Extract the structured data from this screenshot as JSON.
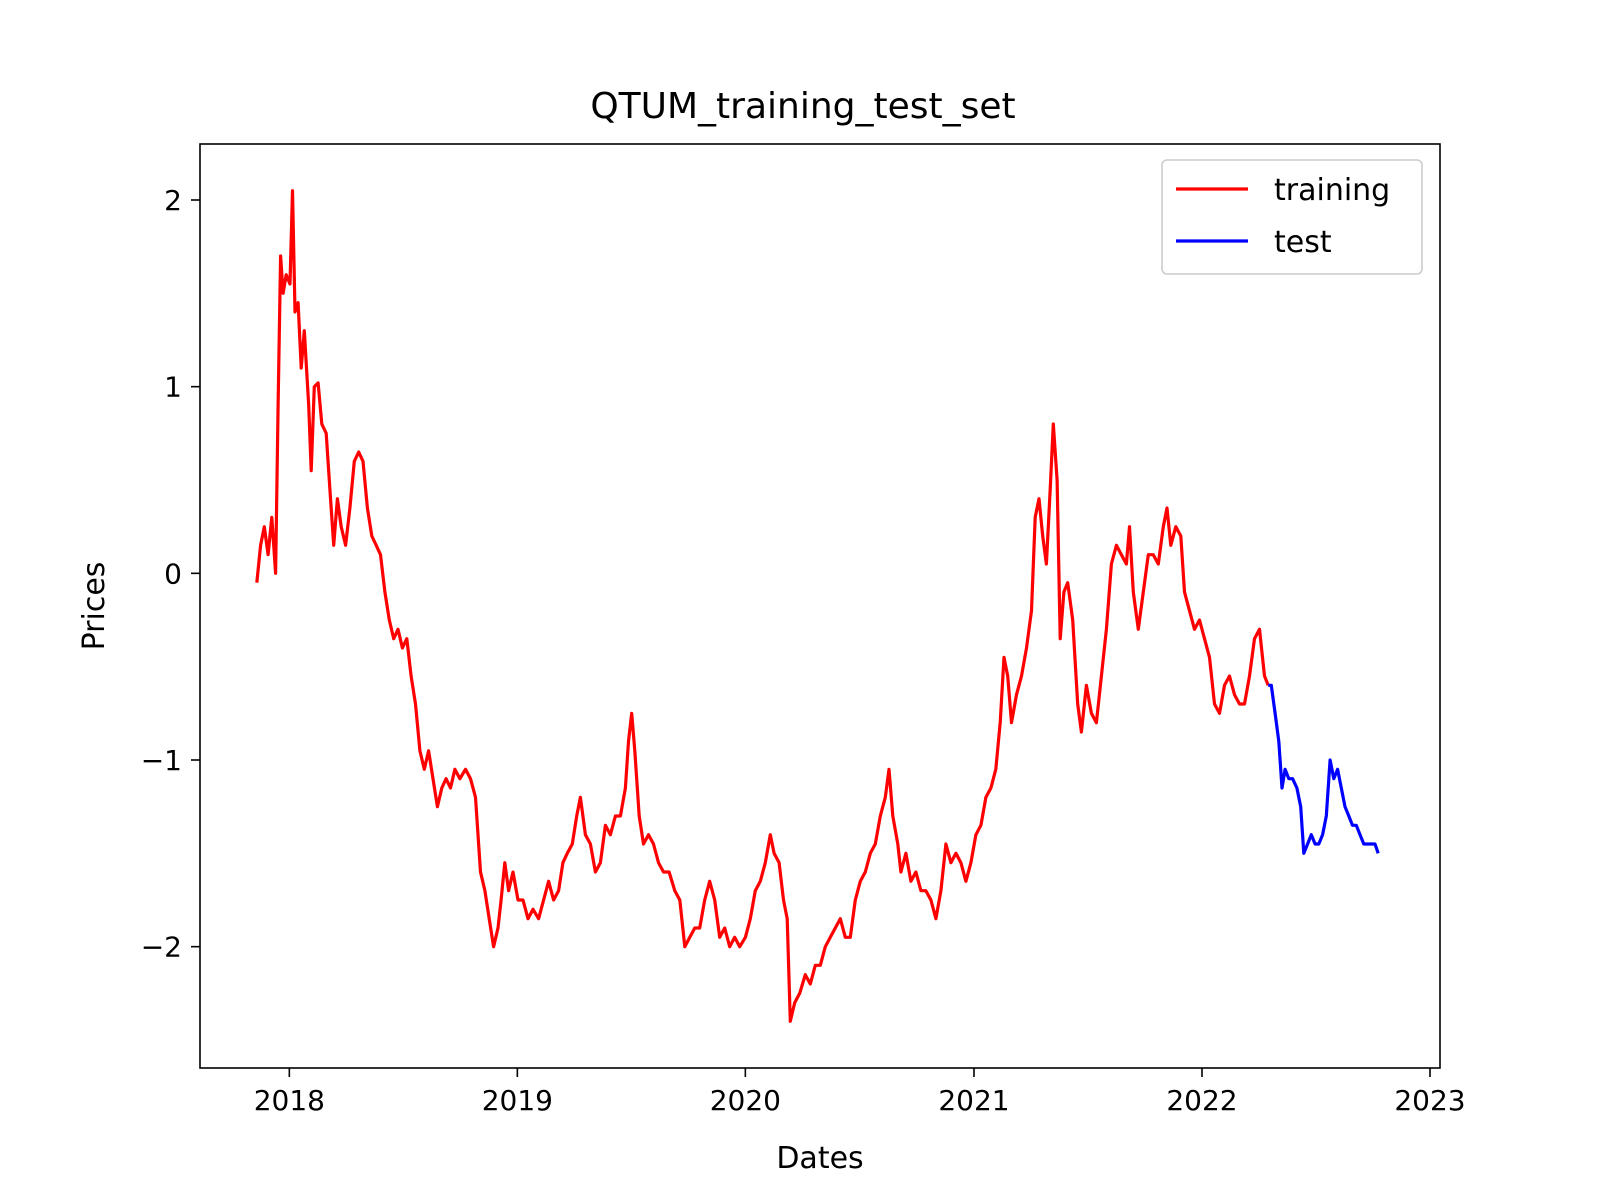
{
  "chart_data": {
    "type": "line",
    "title": "QTUM_training_test_set",
    "xlabel": "Dates",
    "ylabel": "Prices",
    "xlim": [
      "2017-08-11",
      "2023-01-17"
    ],
    "ylim": [
      -2.65,
      2.3
    ],
    "x_ticks": [
      "2018",
      "2019",
      "2020",
      "2021",
      "2022",
      "2023"
    ],
    "y_ticks": [
      {
        "value": 2,
        "label": "2"
      },
      {
        "value": 1,
        "label": "1"
      },
      {
        "value": 0,
        "label": "0"
      },
      {
        "value": -1,
        "label": "−1"
      },
      {
        "value": -2,
        "label": "−2"
      }
    ],
    "grid": false,
    "legend_position": "top-right",
    "series": [
      {
        "name": "training",
        "color": "#ff0000",
        "points": [
          [
            "2017-11-10",
            -0.05
          ],
          [
            "2017-11-16",
            0.15
          ],
          [
            "2017-11-22",
            0.25
          ],
          [
            "2017-11-28",
            0.1
          ],
          [
            "2017-12-04",
            0.3
          ],
          [
            "2017-12-10",
            0.0
          ],
          [
            "2017-12-14",
            0.9
          ],
          [
            "2017-12-18",
            1.7
          ],
          [
            "2017-12-22",
            1.5
          ],
          [
            "2017-12-27",
            1.6
          ],
          [
            "2018-01-02",
            1.55
          ],
          [
            "2018-01-06",
            2.05
          ],
          [
            "2018-01-10",
            1.4
          ],
          [
            "2018-01-15",
            1.45
          ],
          [
            "2018-01-20",
            1.1
          ],
          [
            "2018-01-25",
            1.3
          ],
          [
            "2018-02-01",
            0.9
          ],
          [
            "2018-02-05",
            0.55
          ],
          [
            "2018-02-10",
            1.0
          ],
          [
            "2018-02-16",
            1.02
          ],
          [
            "2018-02-22",
            0.8
          ],
          [
            "2018-03-01",
            0.75
          ],
          [
            "2018-03-07",
            0.45
          ],
          [
            "2018-03-13",
            0.15
          ],
          [
            "2018-03-19",
            0.4
          ],
          [
            "2018-03-25",
            0.25
          ],
          [
            "2018-04-01",
            0.15
          ],
          [
            "2018-04-08",
            0.35
          ],
          [
            "2018-04-15",
            0.6
          ],
          [
            "2018-04-22",
            0.65
          ],
          [
            "2018-04-29",
            0.6
          ],
          [
            "2018-05-06",
            0.35
          ],
          [
            "2018-05-13",
            0.2
          ],
          [
            "2018-05-20",
            0.15
          ],
          [
            "2018-05-27",
            0.1
          ],
          [
            "2018-06-03",
            -0.1
          ],
          [
            "2018-06-10",
            -0.25
          ],
          [
            "2018-06-17",
            -0.35
          ],
          [
            "2018-06-24",
            -0.3
          ],
          [
            "2018-07-01",
            -0.4
          ],
          [
            "2018-07-08",
            -0.35
          ],
          [
            "2018-07-15",
            -0.55
          ],
          [
            "2018-07-22",
            -0.7
          ],
          [
            "2018-07-29",
            -0.95
          ],
          [
            "2018-08-05",
            -1.05
          ],
          [
            "2018-08-12",
            -0.95
          ],
          [
            "2018-08-19",
            -1.1
          ],
          [
            "2018-08-26",
            -1.25
          ],
          [
            "2018-09-02",
            -1.15
          ],
          [
            "2018-09-09",
            -1.1
          ],
          [
            "2018-09-16",
            -1.15
          ],
          [
            "2018-09-23",
            -1.05
          ],
          [
            "2018-10-01",
            -1.1
          ],
          [
            "2018-10-10",
            -1.05
          ],
          [
            "2018-10-18",
            -1.1
          ],
          [
            "2018-10-26",
            -1.2
          ],
          [
            "2018-11-03",
            -1.6
          ],
          [
            "2018-11-10",
            -1.7
          ],
          [
            "2018-11-17",
            -1.85
          ],
          [
            "2018-11-24",
            -2.0
          ],
          [
            "2018-12-01",
            -1.9
          ],
          [
            "2018-12-06",
            -1.75
          ],
          [
            "2018-12-12",
            -1.55
          ],
          [
            "2018-12-18",
            -1.7
          ],
          [
            "2018-12-25",
            -1.6
          ],
          [
            "2019-01-02",
            -1.75
          ],
          [
            "2019-01-10",
            -1.75
          ],
          [
            "2019-01-18",
            -1.85
          ],
          [
            "2019-01-26",
            -1.8
          ],
          [
            "2019-02-04",
            -1.85
          ],
          [
            "2019-02-12",
            -1.75
          ],
          [
            "2019-02-20",
            -1.65
          ],
          [
            "2019-02-28",
            -1.75
          ],
          [
            "2019-03-08",
            -1.7
          ],
          [
            "2019-03-15",
            -1.55
          ],
          [
            "2019-03-22",
            -1.5
          ],
          [
            "2019-03-30",
            -1.45
          ],
          [
            "2019-04-06",
            -1.3
          ],
          [
            "2019-04-12",
            -1.2
          ],
          [
            "2019-04-20",
            -1.4
          ],
          [
            "2019-04-28",
            -1.45
          ],
          [
            "2019-05-06",
            -1.6
          ],
          [
            "2019-05-14",
            -1.55
          ],
          [
            "2019-05-22",
            -1.35
          ],
          [
            "2019-05-30",
            -1.4
          ],
          [
            "2019-06-07",
            -1.3
          ],
          [
            "2019-06-15",
            -1.3
          ],
          [
            "2019-06-23",
            -1.15
          ],
          [
            "2019-06-28",
            -0.9
          ],
          [
            "2019-07-03",
            -0.75
          ],
          [
            "2019-07-08",
            -0.95
          ],
          [
            "2019-07-15",
            -1.3
          ],
          [
            "2019-07-22",
            -1.45
          ],
          [
            "2019-07-30",
            -1.4
          ],
          [
            "2019-08-07",
            -1.45
          ],
          [
            "2019-08-15",
            -1.55
          ],
          [
            "2019-08-23",
            -1.6
          ],
          [
            "2019-09-01",
            -1.6
          ],
          [
            "2019-09-10",
            -1.7
          ],
          [
            "2019-09-18",
            -1.75
          ],
          [
            "2019-09-26",
            -2.0
          ],
          [
            "2019-10-04",
            -1.95
          ],
          [
            "2019-10-12",
            -1.9
          ],
          [
            "2019-10-20",
            -1.9
          ],
          [
            "2019-10-28",
            -1.75
          ],
          [
            "2019-11-05",
            -1.65
          ],
          [
            "2019-11-13",
            -1.75
          ],
          [
            "2019-11-21",
            -1.95
          ],
          [
            "2019-11-29",
            -1.9
          ],
          [
            "2019-12-07",
            -2.0
          ],
          [
            "2019-12-15",
            -1.95
          ],
          [
            "2019-12-23",
            -2.0
          ],
          [
            "2020-01-01",
            -1.95
          ],
          [
            "2020-01-09",
            -1.85
          ],
          [
            "2020-01-17",
            -1.7
          ],
          [
            "2020-01-25",
            -1.65
          ],
          [
            "2020-02-02",
            -1.55
          ],
          [
            "2020-02-10",
            -1.4
          ],
          [
            "2020-02-16",
            -1.5
          ],
          [
            "2020-02-24",
            -1.55
          ],
          [
            "2020-03-02",
            -1.75
          ],
          [
            "2020-03-08",
            -1.85
          ],
          [
            "2020-03-13",
            -2.4
          ],
          [
            "2020-03-20",
            -2.3
          ],
          [
            "2020-03-28",
            -2.25
          ],
          [
            "2020-04-06",
            -2.15
          ],
          [
            "2020-04-14",
            -2.2
          ],
          [
            "2020-04-22",
            -2.1
          ],
          [
            "2020-04-30",
            -2.1
          ],
          [
            "2020-05-08",
            -2.0
          ],
          [
            "2020-05-16",
            -1.95
          ],
          [
            "2020-05-24",
            -1.9
          ],
          [
            "2020-06-01",
            -1.85
          ],
          [
            "2020-06-09",
            -1.95
          ],
          [
            "2020-06-17",
            -1.95
          ],
          [
            "2020-06-25",
            -1.75
          ],
          [
            "2020-07-03",
            -1.65
          ],
          [
            "2020-07-11",
            -1.6
          ],
          [
            "2020-07-19",
            -1.5
          ],
          [
            "2020-07-27",
            -1.45
          ],
          [
            "2020-08-04",
            -1.3
          ],
          [
            "2020-08-12",
            -1.2
          ],
          [
            "2020-08-18",
            -1.05
          ],
          [
            "2020-08-24",
            -1.3
          ],
          [
            "2020-09-01",
            -1.45
          ],
          [
            "2020-09-06",
            -1.6
          ],
          [
            "2020-09-14",
            -1.5
          ],
          [
            "2020-09-22",
            -1.65
          ],
          [
            "2020-09-30",
            -1.6
          ],
          [
            "2020-10-08",
            -1.7
          ],
          [
            "2020-10-16",
            -1.7
          ],
          [
            "2020-10-24",
            -1.75
          ],
          [
            "2020-11-01",
            -1.85
          ],
          [
            "2020-11-09",
            -1.7
          ],
          [
            "2020-11-17",
            -1.45
          ],
          [
            "2020-11-25",
            -1.55
          ],
          [
            "2020-12-03",
            -1.5
          ],
          [
            "2020-12-11",
            -1.55
          ],
          [
            "2020-12-19",
            -1.65
          ],
          [
            "2020-12-27",
            -1.55
          ],
          [
            "2021-01-04",
            -1.4
          ],
          [
            "2021-01-12",
            -1.35
          ],
          [
            "2021-01-20",
            -1.2
          ],
          [
            "2021-01-28",
            -1.15
          ],
          [
            "2021-02-05",
            -1.05
          ],
          [
            "2021-02-12",
            -0.8
          ],
          [
            "2021-02-18",
            -0.45
          ],
          [
            "2021-02-24",
            -0.55
          ],
          [
            "2021-03-02",
            -0.8
          ],
          [
            "2021-03-10",
            -0.65
          ],
          [
            "2021-03-18",
            -0.55
          ],
          [
            "2021-03-26",
            -0.4
          ],
          [
            "2021-04-03",
            -0.2
          ],
          [
            "2021-04-09",
            0.3
          ],
          [
            "2021-04-15",
            0.4
          ],
          [
            "2021-04-21",
            0.2
          ],
          [
            "2021-04-27",
            0.05
          ],
          [
            "2021-05-03",
            0.45
          ],
          [
            "2021-05-08",
            0.8
          ],
          [
            "2021-05-14",
            0.5
          ],
          [
            "2021-05-19",
            -0.35
          ],
          [
            "2021-05-25",
            -0.1
          ],
          [
            "2021-05-31",
            -0.05
          ],
          [
            "2021-06-08",
            -0.25
          ],
          [
            "2021-06-16",
            -0.7
          ],
          [
            "2021-06-22",
            -0.85
          ],
          [
            "2021-06-30",
            -0.6
          ],
          [
            "2021-07-08",
            -0.75
          ],
          [
            "2021-07-16",
            -0.8
          ],
          [
            "2021-07-24",
            -0.55
          ],
          [
            "2021-08-01",
            -0.3
          ],
          [
            "2021-08-09",
            0.05
          ],
          [
            "2021-08-17",
            0.15
          ],
          [
            "2021-08-25",
            0.1
          ],
          [
            "2021-09-02",
            0.05
          ],
          [
            "2021-09-07",
            0.25
          ],
          [
            "2021-09-13",
            -0.1
          ],
          [
            "2021-09-21",
            -0.3
          ],
          [
            "2021-09-29",
            -0.1
          ],
          [
            "2021-10-07",
            0.1
          ],
          [
            "2021-10-15",
            0.1
          ],
          [
            "2021-10-23",
            0.05
          ],
          [
            "2021-10-31",
            0.25
          ],
          [
            "2021-11-06",
            0.35
          ],
          [
            "2021-11-12",
            0.15
          ],
          [
            "2021-11-20",
            0.25
          ],
          [
            "2021-11-28",
            0.2
          ],
          [
            "2021-12-04",
            -0.1
          ],
          [
            "2021-12-12",
            -0.2
          ],
          [
            "2021-12-20",
            -0.3
          ],
          [
            "2021-12-28",
            -0.25
          ],
          [
            "2022-01-05",
            -0.35
          ],
          [
            "2022-01-13",
            -0.45
          ],
          [
            "2022-01-21",
            -0.7
          ],
          [
            "2022-01-29",
            -0.75
          ],
          [
            "2022-02-06",
            -0.6
          ],
          [
            "2022-02-14",
            -0.55
          ],
          [
            "2022-02-22",
            -0.65
          ],
          [
            "2022-03-02",
            -0.7
          ],
          [
            "2022-03-10",
            -0.7
          ],
          [
            "2022-03-18",
            -0.55
          ],
          [
            "2022-03-26",
            -0.35
          ],
          [
            "2022-04-03",
            -0.3
          ],
          [
            "2022-04-11",
            -0.55
          ],
          [
            "2022-04-17",
            -0.6
          ]
        ]
      },
      {
        "name": "test",
        "color": "#0000ff",
        "points": [
          [
            "2022-04-17",
            -0.6
          ],
          [
            "2022-04-22",
            -0.6
          ],
          [
            "2022-04-28",
            -0.75
          ],
          [
            "2022-05-04",
            -0.9
          ],
          [
            "2022-05-09",
            -1.15
          ],
          [
            "2022-05-14",
            -1.05
          ],
          [
            "2022-05-20",
            -1.1
          ],
          [
            "2022-05-26",
            -1.1
          ],
          [
            "2022-06-02",
            -1.15
          ],
          [
            "2022-06-08",
            -1.25
          ],
          [
            "2022-06-13",
            -1.5
          ],
          [
            "2022-06-19",
            -1.45
          ],
          [
            "2022-06-25",
            -1.4
          ],
          [
            "2022-07-01",
            -1.45
          ],
          [
            "2022-07-07",
            -1.45
          ],
          [
            "2022-07-13",
            -1.4
          ],
          [
            "2022-07-19",
            -1.3
          ],
          [
            "2022-07-25",
            -1.0
          ],
          [
            "2022-07-31",
            -1.1
          ],
          [
            "2022-08-06",
            -1.05
          ],
          [
            "2022-08-12",
            -1.15
          ],
          [
            "2022-08-18",
            -1.25
          ],
          [
            "2022-08-24",
            -1.3
          ],
          [
            "2022-08-30",
            -1.35
          ],
          [
            "2022-09-05",
            -1.35
          ],
          [
            "2022-09-11",
            -1.4
          ],
          [
            "2022-09-17",
            -1.45
          ],
          [
            "2022-09-23",
            -1.45
          ],
          [
            "2022-09-29",
            -1.45
          ],
          [
            "2022-10-05",
            -1.45
          ],
          [
            "2022-10-10",
            -1.5
          ]
        ]
      }
    ]
  }
}
